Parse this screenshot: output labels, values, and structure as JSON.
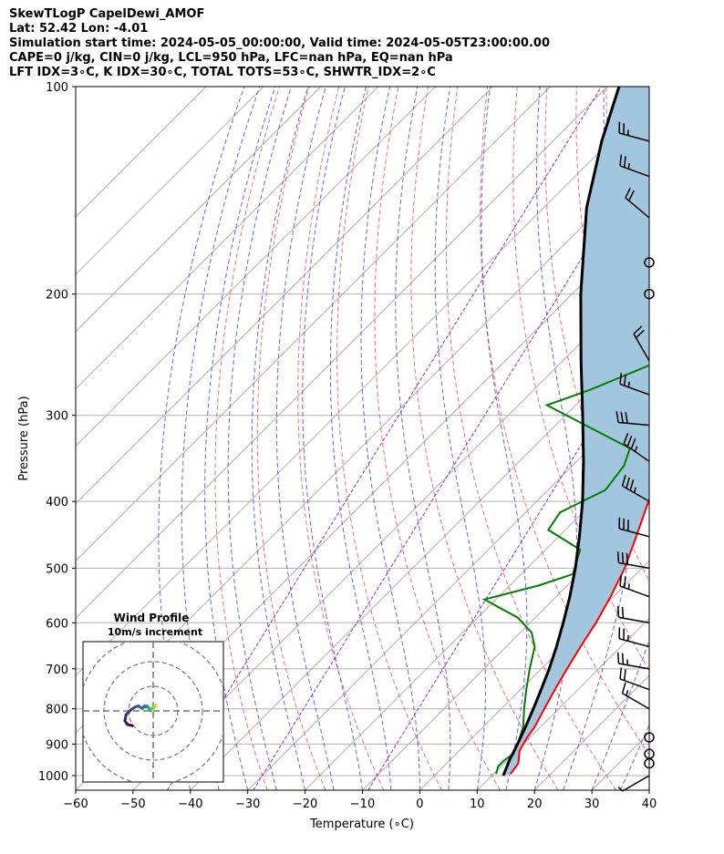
{
  "header": {
    "title": "SkewTLogP CapelDewi_AMOF",
    "location": "Lat: 52.42   Lon: -4.01",
    "times": "Simulation start time: 2024-05-05_00:00:00, Valid time: 2024-05-05T23:00:00.00",
    "indices_1": "CAPE=0 j/kg, CIN=0 j/kg, LCL=950 hPa, LFC=nan hPa, EQ=nan hPa",
    "indices_2": "LFT IDX=3∘C, K IDX=30∘C, TOTAL TOTS=53∘C, SHWTR_IDX=2∘C"
  },
  "chart_data": [
    {
      "type": "line",
      "subtype": "skew-T log-P sounding",
      "xlabel": "Temperature (∘C)",
      "ylabel": "Pressure (hPa)",
      "xlim": [
        -60,
        40
      ],
      "ylim": [
        1050,
        100
      ],
      "y_scale": "log",
      "x_ticks": [
        "−60",
        "−50",
        "−40",
        "−30",
        "−20",
        "−10",
        "0",
        "10",
        "20",
        "30",
        "40"
      ],
      "x_tick_values": [
        -60,
        -50,
        -40,
        -30,
        -20,
        -10,
        0,
        10,
        20,
        30,
        40
      ],
      "y_ticks": [
        "1000",
        "900",
        "800",
        "700",
        "600",
        "500",
        "400",
        "300",
        "200",
        "100"
      ],
      "y_tick_values": [
        1000,
        900,
        800,
        700,
        600,
        500,
        400,
        300,
        200,
        100
      ],
      "grid": true,
      "series": [
        {
          "role": "temperature",
          "color": "#ff0000",
          "pressure": [
            995,
            960,
            920,
            880,
            850,
            800,
            750,
            700,
            650,
            600,
            550,
            500,
            450,
            400,
            350,
            330,
            300,
            270,
            250,
            230,
            210,
            180,
            150,
            130,
            110,
            100
          ],
          "temperature": [
            13,
            12.5,
            10.5,
            9.5,
            9,
            7.5,
            6,
            4.5,
            3,
            1.5,
            -0.5,
            -3,
            -6.5,
            -10.5,
            -14.5,
            -16,
            -17.5,
            -18.5,
            -19,
            -17.5,
            -16.5,
            -13,
            -9.5,
            -6,
            -2,
            -0.5
          ]
        },
        {
          "role": "dewpoint",
          "color": "#008000",
          "pressure": [
            995,
            970,
            950,
            930,
            900,
            850,
            800,
            750,
            700,
            650,
            620,
            590,
            555,
            530,
            510,
            470,
            440,
            415,
            385,
            355,
            335,
            290,
            275,
            240,
            230,
            210,
            200,
            180,
            160,
            145,
            120,
            100
          ],
          "temperature": [
            10.5,
            9.5,
            9.5,
            10,
            9,
            7,
            4,
            1,
            -2,
            -5,
            -8,
            -13,
            -22,
            -15,
            -11,
            -14,
            -23,
            -24,
            -20,
            -21,
            -23,
            -45,
            -40,
            -30,
            -29.5,
            -31.5,
            -33,
            -35,
            -35.5,
            -34,
            -30,
            -26
          ]
        },
        {
          "role": "parcel",
          "color": "#000000",
          "pressure": [
            1000,
            950,
            900,
            850,
            800,
            750,
            700,
            650,
            600,
            550,
            500,
            450,
            400,
            350,
            300,
            250,
            200,
            150,
            120,
            100
          ],
          "temperature": [
            12,
            10.4,
            9,
            7.4,
            5.6,
            3.6,
            1.4,
            -1.2,
            -4.2,
            -7.6,
            -11.6,
            -16.4,
            -22,
            -28.8,
            -37,
            -46.8,
            -58.5,
            -72.5,
            -81.5,
            -88
          ]
        }
      ],
      "wind_barbs": {
        "pressure": [
          1000,
          960,
          930,
          880,
          800,
          750,
          700,
          650,
          600,
          550,
          500,
          450,
          400,
          350,
          310,
          280,
          250,
          200,
          180,
          155,
          135,
          120
        ],
        "speed_kt": [
          5,
          0,
          0,
          0,
          15,
          20,
          25,
          25,
          20,
          25,
          30,
          30,
          35,
          35,
          30,
          25,
          20,
          0,
          0,
          20,
          25,
          25
        ],
        "direction_deg": [
          240,
          0,
          0,
          0,
          300,
          290,
          280,
          285,
          280,
          290,
          280,
          285,
          300,
          305,
          275,
          290,
          330,
          0,
          0,
          310,
          290,
          285
        ]
      }
    },
    {
      "type": "scatter",
      "subtype": "hodograph",
      "title": "Wind Profile",
      "subtitle": "10m/s increment",
      "rings_ms": [
        10,
        20,
        30,
        40
      ],
      "u": [
        3,
        2,
        1,
        0,
        -1,
        -2,
        -2,
        -3,
        -4,
        -5,
        -6,
        -7,
        -9,
        -12,
        -15,
        -18,
        -22,
        -23,
        -21,
        -17
      ],
      "v": [
        4,
        5,
        3,
        2,
        2,
        2,
        0,
        1,
        3,
        4,
        3,
        4,
        2,
        4,
        3,
        1,
        -3,
        -8,
        -11,
        -12
      ]
    }
  ]
}
